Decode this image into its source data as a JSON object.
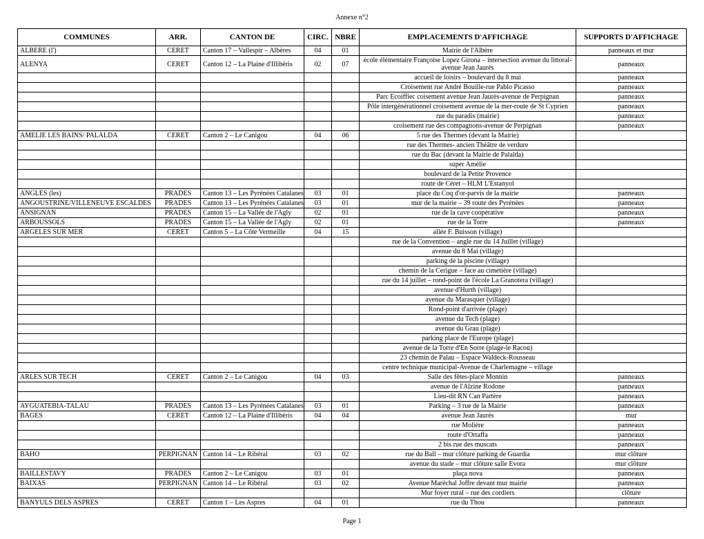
{
  "header": {
    "annexe": "Annexe n°2",
    "page": "Page 1"
  },
  "columns": {
    "commune": "COMMUNES",
    "arr": "ARR.",
    "canton": "CANTON DE",
    "circ": "CIRC.",
    "nbre": "NBRE",
    "emplacement": "EMPLACEMENTS D'AFFICHAGE",
    "support": "SUPPORTS D'AFFICHAGE"
  },
  "rows": [
    {
      "commune": "ALBERE (l')",
      "arr": "CERET",
      "canton": "Canton 17 – Vallespir – Albères",
      "circ": "04",
      "nbre": "01",
      "emp": "Mairie de l'Albère",
      "sup": "panneaux et mur"
    },
    {
      "commune": "ALENYA",
      "arr": "CERET",
      "canton": "Canton 12 – La Plaine d'Illibéris",
      "circ": "02",
      "nbre": "07",
      "emp": "école élémentaire Françoise Lopez Girona – intersection avenue du littoral-avenue Jean Jaurès",
      "sup": "panneaux"
    },
    {
      "commune": "",
      "arr": "",
      "canton": "",
      "circ": "",
      "nbre": "",
      "emp": "accueil de loisirs – boulevard du 8 mai",
      "sup": "panneaux"
    },
    {
      "commune": "",
      "arr": "",
      "canton": "",
      "circ": "",
      "nbre": "",
      "emp": "Croisement rue André Bouille-rue Pablo Picasso",
      "sup": "panneaux"
    },
    {
      "commune": "",
      "arr": "",
      "canton": "",
      "circ": "",
      "nbre": "",
      "emp": "Parc Ecoiffiec coisement avenue Jean Jaurès-avenue de Perpignan",
      "sup": "panneaux"
    },
    {
      "commune": "",
      "arr": "",
      "canton": "",
      "circ": "",
      "nbre": "",
      "emp": "Pôle intergénérationnel croisement avenue de la mer-route de St Cyprien",
      "sup": "panneaux"
    },
    {
      "commune": "",
      "arr": "",
      "canton": "",
      "circ": "",
      "nbre": "",
      "emp": "rue du paradis (mairie)",
      "sup": "panneaux"
    },
    {
      "commune": "",
      "arr": "",
      "canton": "",
      "circ": "",
      "nbre": "",
      "emp": "croisement rue des compagnons-avenue de Perpignan",
      "sup": "panneaux"
    },
    {
      "commune": "AMELIE LES BAINS/ PALALDA",
      "arr": "CERET",
      "canton": "Canton 2 – Le Canigou",
      "circ": "04",
      "nbre": "06",
      "emp": "5 rue des Thermes (devant la Mairie)",
      "sup": ""
    },
    {
      "commune": "",
      "arr": "",
      "canton": "",
      "circ": "",
      "nbre": "",
      "emp": "rue des Thermes- ancien Théâtre de verdure",
      "sup": ""
    },
    {
      "commune": "",
      "arr": "",
      "canton": "",
      "circ": "",
      "nbre": "",
      "emp": "rue du Bac (devant la Mairie de Palalda)",
      "sup": ""
    },
    {
      "commune": "",
      "arr": "",
      "canton": "",
      "circ": "",
      "nbre": "",
      "emp": "super Amélie",
      "sup": ""
    },
    {
      "commune": "",
      "arr": "",
      "canton": "",
      "circ": "",
      "nbre": "",
      "emp": "boulevard de la Petite Provence",
      "sup": ""
    },
    {
      "commune": "",
      "arr": "",
      "canton": "",
      "circ": "",
      "nbre": "",
      "emp": "route de Céret – HLM L'Estanyol",
      "sup": ""
    },
    {
      "commune": "ANGLES (les)",
      "arr": "PRADES",
      "canton": "Canton 13 – Les Pyrénées Catalanes",
      "circ": "03",
      "nbre": "01",
      "emp": "place du Coq d'or-parvis de la mairie",
      "sup": "panneaux"
    },
    {
      "commune": "ANGOUSTRINE/VILLENEUVE ESCALDES",
      "arr": "PRADES",
      "canton": "Canton 13 – Les Pyrénées Catalanes",
      "circ": "03",
      "nbre": "01",
      "emp": "mur de la mairie – 39 route des Pyrénées",
      "sup": "panneaux"
    },
    {
      "commune": "ANSIGNAN",
      "arr": "PRADES",
      "canton": "Canton 15 – La Vallée de l'Agly",
      "circ": "02",
      "nbre": "01",
      "emp": "rue de la cave coopérative",
      "sup": "panneaux"
    },
    {
      "commune": "ARBOUSSOLS",
      "arr": "PRADES",
      "canton": "Canton 15 – La Vallée de l'Agly",
      "circ": "02",
      "nbre": "01",
      "emp": "rue de la Torre",
      "sup": "panneaux"
    },
    {
      "commune": "ARGELES SUR MER",
      "arr": "CERET",
      "canton": "Canton 5 – La Côte Vermeille",
      "circ": "04",
      "nbre": "15",
      "emp": "allée F. Buisson (village)",
      "sup": ""
    },
    {
      "commune": "",
      "arr": "",
      "canton": "",
      "circ": "",
      "nbre": "",
      "emp": "rue de la Convention – angle rue du 14 Juillet (village)",
      "sup": ""
    },
    {
      "commune": "",
      "arr": "",
      "canton": "",
      "circ": "",
      "nbre": "",
      "emp": "avenue du 8 Mai (village)",
      "sup": ""
    },
    {
      "commune": "",
      "arr": "",
      "canton": "",
      "circ": "",
      "nbre": "",
      "emp": "parking de la piscine (village)",
      "sup": ""
    },
    {
      "commune": "",
      "arr": "",
      "canton": "",
      "circ": "",
      "nbre": "",
      "emp": "chemin de la Cerigue – face au cimetière (village)",
      "sup": ""
    },
    {
      "commune": "",
      "arr": "",
      "canton": "",
      "circ": "",
      "nbre": "",
      "emp": "rue du 14 juillet – rond-point de l'école La Granotera (village)",
      "sup": ""
    },
    {
      "commune": "",
      "arr": "",
      "canton": "",
      "circ": "",
      "nbre": "",
      "emp": "avenue d'Hurth (village)",
      "sup": ""
    },
    {
      "commune": "",
      "arr": "",
      "canton": "",
      "circ": "",
      "nbre": "",
      "emp": "avenue du Marasquer (village)",
      "sup": ""
    },
    {
      "commune": "",
      "arr": "",
      "canton": "",
      "circ": "",
      "nbre": "",
      "emp": "Rond-point d'arrivée (plage)",
      "sup": ""
    },
    {
      "commune": "",
      "arr": "",
      "canton": "",
      "circ": "",
      "nbre": "",
      "emp": "avenue du Tech (plage)",
      "sup": ""
    },
    {
      "commune": "",
      "arr": "",
      "canton": "",
      "circ": "",
      "nbre": "",
      "emp": "avenue du Grau (plage)",
      "sup": ""
    },
    {
      "commune": "",
      "arr": "",
      "canton": "",
      "circ": "",
      "nbre": "",
      "emp": "parking place de l'Europe (plage)",
      "sup": ""
    },
    {
      "commune": "",
      "arr": "",
      "canton": "",
      "circ": "",
      "nbre": "",
      "emp": "avenue de la Torre d'En Sorre (plage-le Racou)",
      "sup": ""
    },
    {
      "commune": "",
      "arr": "",
      "canton": "",
      "circ": "",
      "nbre": "",
      "emp": "23 chemin de Palau – Espace Waldeck-Rousseau",
      "sup": ""
    },
    {
      "commune": "",
      "arr": "",
      "canton": "",
      "circ": "",
      "nbre": "",
      "emp": "centre technique municipal-Avenue de Charlemagne – village",
      "sup": ""
    },
    {
      "commune": "ARLES SUR TECH",
      "arr": "CERET",
      "canton": "Canton 2 – Le Canigou",
      "circ": "04",
      "nbre": "03",
      "emp": "Salle des fêtes-place Monnin",
      "sup": "panneaux"
    },
    {
      "commune": "",
      "arr": "",
      "canton": "",
      "circ": "",
      "nbre": "",
      "emp": "avenue de l'Alzine Rodone",
      "sup": "panneaux"
    },
    {
      "commune": "",
      "arr": "",
      "canton": "",
      "circ": "",
      "nbre": "",
      "emp": "Lieu-dit RN Can Partère",
      "sup": "panneaux"
    },
    {
      "commune": "AYGUATEBIA-TALAU",
      "arr": "PRADES",
      "canton": "Canton 13 – Les Pyrénées Catalanes",
      "circ": "03",
      "nbre": "01",
      "emp": "Parking – 3 rue de la Mairie",
      "sup": "panneaux"
    },
    {
      "commune": "BAGES",
      "arr": "CERET",
      "canton": "Canton 12 – La Plaine d'Illibéris",
      "circ": "04",
      "nbre": "04",
      "emp": "avenue Jean Jaurès",
      "sup": "mur"
    },
    {
      "commune": "",
      "arr": "",
      "canton": "",
      "circ": "",
      "nbre": "",
      "emp": "rue Molière",
      "sup": "panneaux"
    },
    {
      "commune": "",
      "arr": "",
      "canton": "",
      "circ": "",
      "nbre": "",
      "emp": "route d'Ortaffa",
      "sup": "panneaux"
    },
    {
      "commune": "",
      "arr": "",
      "canton": "",
      "circ": "",
      "nbre": "",
      "emp": "2 bis rue des muscats",
      "sup": "panneaux"
    },
    {
      "commune": "BAHO",
      "arr": "PERPIGNAN",
      "canton": "Canton 14 – Le Ribéral",
      "circ": "03",
      "nbre": "02",
      "emp": "rue du Ball – mur clôture parking de Guardia",
      "sup": "mur clôture"
    },
    {
      "commune": "",
      "arr": "",
      "canton": "",
      "circ": "",
      "nbre": "",
      "emp": "avenue du stade –  mur clôture salle Evora",
      "sup": "mur clôture"
    },
    {
      "commune": "BAILLESTAVY",
      "arr": "PRADES",
      "canton": "Canton 2 – Le Canigou",
      "circ": "03",
      "nbre": "01",
      "emp": "plaça nova",
      "sup": "panneaux"
    },
    {
      "commune": "BAIXAS",
      "arr": "PERPIGNAN",
      "canton": "Canton 14 – Le Ribéral",
      "circ": "03",
      "nbre": "02",
      "emp": "Avenue Maréchal Joffre devant mur mairie",
      "sup": "panneaux"
    },
    {
      "commune": "",
      "arr": "",
      "canton": "",
      "circ": "",
      "nbre": "",
      "emp": "Mur foyer rural – rue des cordiers",
      "sup": "clôture"
    },
    {
      "commune": "BANYULS DELS ASPRES",
      "arr": "CERET",
      "canton": "Canton 1 – Les Aspres",
      "circ": "04",
      "nbre": "01",
      "emp": "rue du Thou",
      "sup": "panneaux"
    }
  ]
}
